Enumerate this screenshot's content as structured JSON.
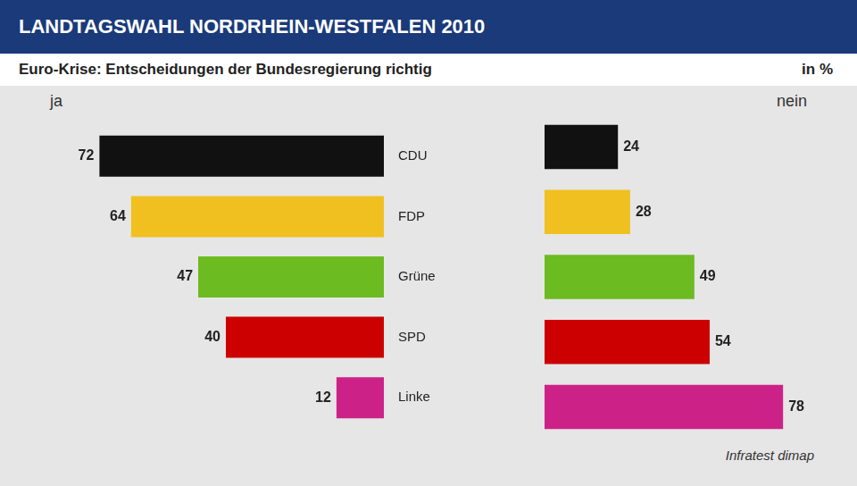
{
  "chart_data": {
    "type": "bar",
    "orientation": "horizontal",
    "title": "LANDTAGSWAHL NORDRHEIN-WESTFALEN 2010",
    "subtitle": "Euro-Krise: Entscheidungen der Bundesregierung richtig",
    "annotations": [
      "in %",
      "Infratest dimap"
    ],
    "categories": [
      "CDU",
      "FDP",
      "Grüne",
      "SPD",
      "Linke"
    ],
    "series": [
      {
        "name": "ja",
        "values": [
          72,
          64,
          47,
          40,
          12
        ],
        "colors": [
          "#111111",
          "#F0C020",
          "#6CBB20",
          "#CC0000",
          "#CC2288"
        ]
      },
      {
        "name": "nein",
        "values": [
          24,
          28,
          49,
          54,
          78
        ],
        "colors": [
          "#111111",
          "#F0C020",
          "#6CBB20",
          "#CC0000",
          "#CC2288"
        ]
      }
    ],
    "xlim": [
      0,
      80
    ],
    "grid": false,
    "data_labels": true,
    "tick_labels": "y"
  }
}
